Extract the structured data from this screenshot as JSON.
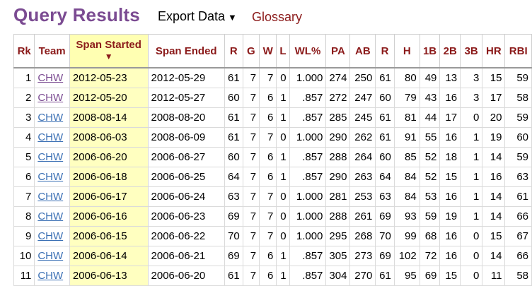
{
  "header": {
    "title": "Query Results",
    "export_label": "Export Data",
    "export_arrow": "▼",
    "glossary_label": "Glossary"
  },
  "columns": [
    "Rk",
    "Team",
    "Span Started",
    "Span Ended",
    "R",
    "G",
    "W",
    "L",
    "WL%",
    "PA",
    "AB",
    "R",
    "H",
    "1B",
    "2B",
    "3B",
    "HR",
    "RBI"
  ],
  "sort_arrow": "▼",
  "colors": {
    "title": "#7b4b92",
    "header_text": "#8b1a1a",
    "sorted_column": "#ffffc0",
    "link": "#3a6fb4",
    "visited_link": "#7b4b92"
  },
  "rows": [
    {
      "rk": "1",
      "team": "CHW",
      "start": "2012-05-23",
      "end": "2012-05-29",
      "r": "61",
      "g": "7",
      "w": "7",
      "l": "0",
      "wlp": "1.000",
      "pa": "274",
      "ab": "250",
      "r2": "61",
      "h": "80",
      "b1": "49",
      "b2": "13",
      "b3": "3",
      "hr": "15",
      "rbi": "59"
    },
    {
      "rk": "2",
      "team": "CHW",
      "start": "2012-05-20",
      "end": "2012-05-27",
      "r": "60",
      "g": "7",
      "w": "6",
      "l": "1",
      "wlp": ".857",
      "pa": "272",
      "ab": "247",
      "r2": "60",
      "h": "79",
      "b1": "43",
      "b2": "16",
      "b3": "3",
      "hr": "17",
      "rbi": "58"
    },
    {
      "rk": "3",
      "team": "CHW",
      "start": "2008-08-14",
      "end": "2008-08-20",
      "r": "61",
      "g": "7",
      "w": "6",
      "l": "1",
      "wlp": ".857",
      "pa": "285",
      "ab": "245",
      "r2": "61",
      "h": "81",
      "b1": "44",
      "b2": "17",
      "b3": "0",
      "hr": "20",
      "rbi": "59"
    },
    {
      "rk": "4",
      "team": "CHW",
      "start": "2008-06-03",
      "end": "2008-06-09",
      "r": "61",
      "g": "7",
      "w": "7",
      "l": "0",
      "wlp": "1.000",
      "pa": "290",
      "ab": "262",
      "r2": "61",
      "h": "91",
      "b1": "55",
      "b2": "16",
      "b3": "1",
      "hr": "19",
      "rbi": "60"
    },
    {
      "rk": "5",
      "team": "CHW",
      "start": "2006-06-20",
      "end": "2006-06-27",
      "r": "60",
      "g": "7",
      "w": "6",
      "l": "1",
      "wlp": ".857",
      "pa": "288",
      "ab": "264",
      "r2": "60",
      "h": "85",
      "b1": "52",
      "b2": "18",
      "b3": "1",
      "hr": "14",
      "rbi": "59"
    },
    {
      "rk": "6",
      "team": "CHW",
      "start": "2006-06-18",
      "end": "2006-06-25",
      "r": "64",
      "g": "7",
      "w": "6",
      "l": "1",
      "wlp": ".857",
      "pa": "290",
      "ab": "263",
      "r2": "64",
      "h": "84",
      "b1": "52",
      "b2": "15",
      "b3": "1",
      "hr": "16",
      "rbi": "63"
    },
    {
      "rk": "7",
      "team": "CHW",
      "start": "2006-06-17",
      "end": "2006-06-24",
      "r": "63",
      "g": "7",
      "w": "7",
      "l": "0",
      "wlp": "1.000",
      "pa": "281",
      "ab": "253",
      "r2": "63",
      "h": "84",
      "b1": "53",
      "b2": "16",
      "b3": "1",
      "hr": "14",
      "rbi": "61"
    },
    {
      "rk": "8",
      "team": "CHW",
      "start": "2006-06-16",
      "end": "2006-06-23",
      "r": "69",
      "g": "7",
      "w": "7",
      "l": "0",
      "wlp": "1.000",
      "pa": "288",
      "ab": "261",
      "r2": "69",
      "h": "93",
      "b1": "59",
      "b2": "19",
      "b3": "1",
      "hr": "14",
      "rbi": "66"
    },
    {
      "rk": "9",
      "team": "CHW",
      "start": "2006-06-15",
      "end": "2006-06-22",
      "r": "70",
      "g": "7",
      "w": "7",
      "l": "0",
      "wlp": "1.000",
      "pa": "295",
      "ab": "268",
      "r2": "70",
      "h": "99",
      "b1": "68",
      "b2": "16",
      "b3": "0",
      "hr": "15",
      "rbi": "67"
    },
    {
      "rk": "10",
      "team": "CHW",
      "start": "2006-06-14",
      "end": "2006-06-21",
      "r": "69",
      "g": "7",
      "w": "6",
      "l": "1",
      "wlp": ".857",
      "pa": "305",
      "ab": "273",
      "r2": "69",
      "h": "102",
      "b1": "72",
      "b2": "16",
      "b3": "0",
      "hr": "14",
      "rbi": "66"
    },
    {
      "rk": "11",
      "team": "CHW",
      "start": "2006-06-13",
      "end": "2006-06-20",
      "r": "61",
      "g": "7",
      "w": "6",
      "l": "1",
      "wlp": ".857",
      "pa": "304",
      "ab": "270",
      "r2": "61",
      "h": "95",
      "b1": "69",
      "b2": "15",
      "b3": "0",
      "hr": "11",
      "rbi": "58"
    }
  ]
}
